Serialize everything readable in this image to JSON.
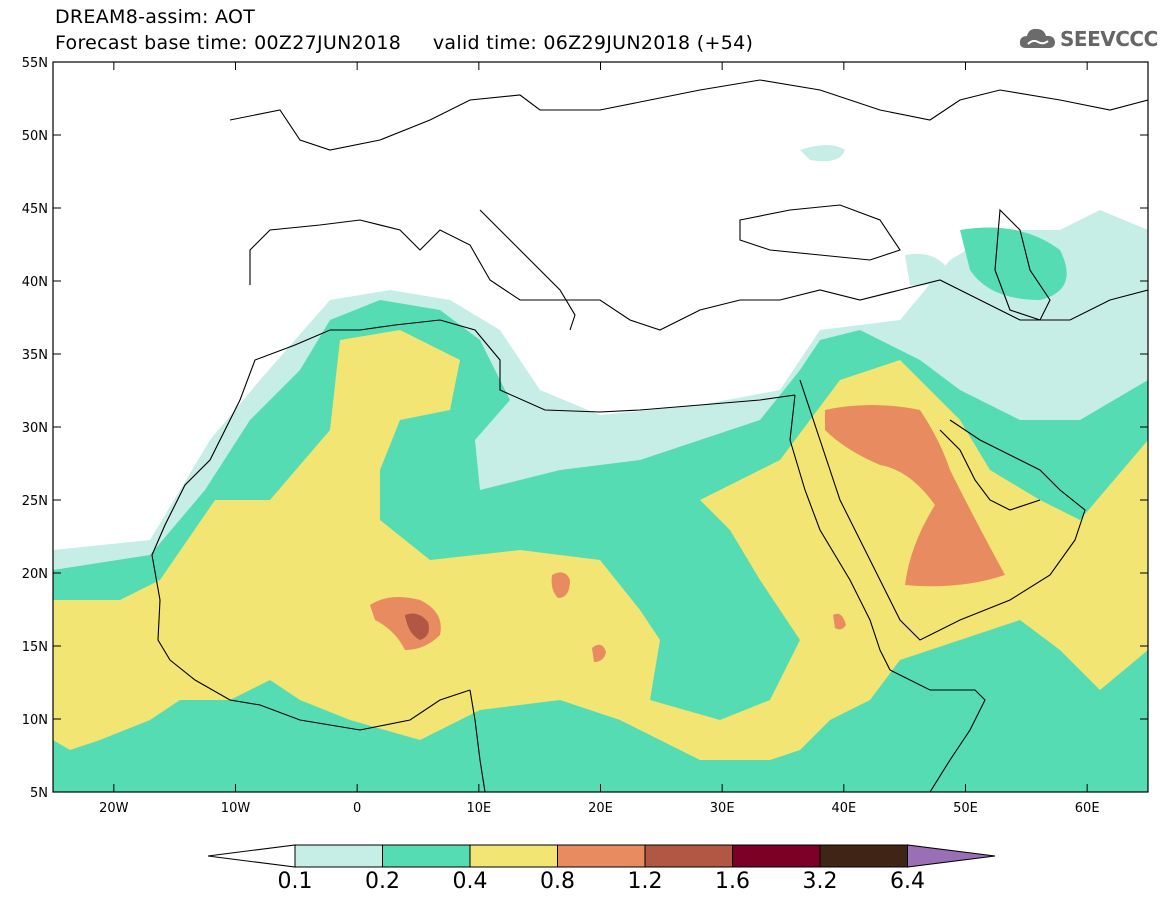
{
  "header": {
    "title_line1": "DREAM8-assim: AOT",
    "title_line2": "Forecast base time: 00Z27JUN2018     valid time: 06Z29JUN2018 (+54)"
  },
  "logo": {
    "text": "SEEVCCC",
    "icon": "cloud-icon"
  },
  "map": {
    "lon_range": [
      -25,
      65
    ],
    "lat_range": [
      5,
      55
    ],
    "lat_labels": [
      "5N",
      "10N",
      "15N",
      "20N",
      "25N",
      "30N",
      "35N",
      "40N",
      "45N",
      "50N",
      "55N"
    ],
    "lon_labels": [
      "20W",
      "10W",
      "0",
      "10E",
      "20E",
      "30E",
      "40E",
      "50E",
      "60E"
    ]
  },
  "colorbar": {
    "levels": [
      "0.1",
      "0.2",
      "0.4",
      "0.8",
      "1.2",
      "1.6",
      "3.2",
      "6.4"
    ],
    "colors": {
      "below": "#ffffff",
      "c1": "#c6eee6",
      "c2": "#55dcb2",
      "c3": "#f2e574",
      "c4": "#e98b61",
      "c5": "#b25743",
      "c6": "#7c0025",
      "c7": "#402517",
      "above": "#9b6fb6"
    }
  }
}
